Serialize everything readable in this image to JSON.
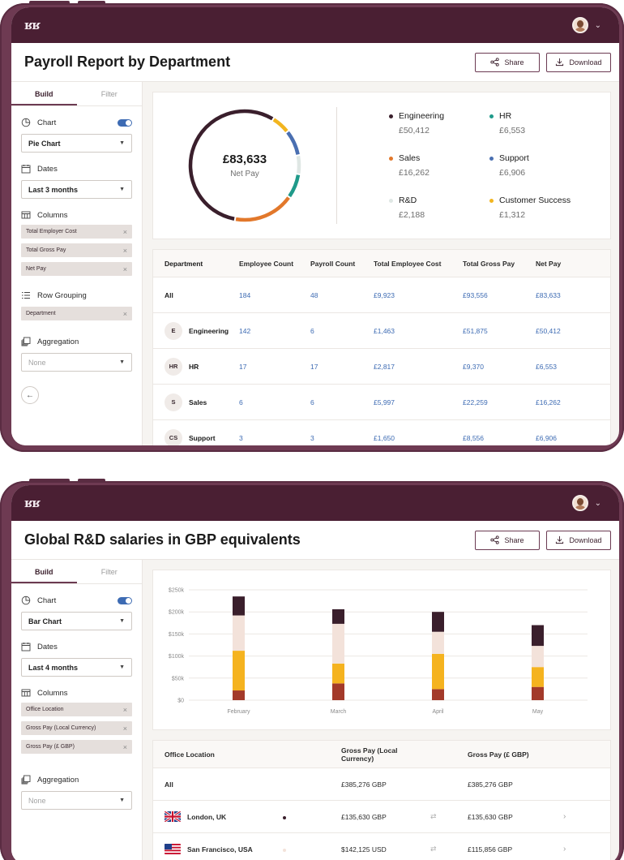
{
  "app": {
    "logo": "ʁʁ"
  },
  "share_label": "Share",
  "download_label": "Download",
  "tabs": {
    "build": "Build",
    "filter": "Filter"
  },
  "report1": {
    "title": "Payroll Report by Department",
    "sidebar": {
      "chart_label": "Chart",
      "chart_value": "Pie Chart",
      "dates_label": "Dates",
      "dates_value": "Last 3 months",
      "columns_label": "Columns",
      "columns": [
        "Total Employer Cost",
        "Total Gross Pay",
        "Net Pay"
      ],
      "grouping_label": "Row Grouping",
      "grouping": [
        "Department"
      ],
      "aggregation_label": "Aggregation",
      "aggregation_value": "None"
    },
    "summary": {
      "value": "£83,633",
      "label": "Net Pay"
    },
    "chart_data": {
      "type": "pie",
      "title": "",
      "slices": [
        {
          "name": "Engineering",
          "value": 50412,
          "display": "£50,412",
          "color": "#3a1f2c"
        },
        {
          "name": "HR",
          "value": 6553,
          "display": "£6,553",
          "color": "#1f9a8a"
        },
        {
          "name": "Sales",
          "value": 16262,
          "display": "£16,262",
          "color": "#e2782b"
        },
        {
          "name": "Support",
          "value": 6906,
          "display": "£6,906",
          "color": "#4a6fb1"
        },
        {
          "name": "R&D",
          "value": 2188,
          "display": "£2,188",
          "color": "#dfe7e4"
        },
        {
          "name": "Customer Success",
          "value": 1312,
          "display": "£1,312",
          "color": "#f2b51f"
        }
      ],
      "ring_order": [
        "Customer Success",
        "Support",
        "R&D",
        "HR",
        "Sales",
        "Engineering"
      ]
    },
    "table": {
      "headers": [
        "Department",
        "Employee Count",
        "Payroll Count",
        "Total Employee Cost",
        "Total Gross Pay",
        "Net Pay"
      ],
      "rows": [
        {
          "badge": "",
          "name": "All",
          "cells": [
            "184",
            "48",
            "£9,923",
            "£93,556",
            "£83,633"
          ]
        },
        {
          "badge": "E",
          "name": "Engineering",
          "cells": [
            "142",
            "6",
            "£1,463",
            "£51,875",
            "£50,412"
          ]
        },
        {
          "badge": "HR",
          "name": "HR",
          "cells": [
            "17",
            "17",
            "£2,817",
            "£9,370",
            "£6,553"
          ]
        },
        {
          "badge": "S",
          "name": "Sales",
          "cells": [
            "6",
            "6",
            "£5,997",
            "£22,259",
            "£16,262"
          ]
        },
        {
          "badge": "CS",
          "name": "Support",
          "cells": [
            "3",
            "3",
            "£1,650",
            "£8,556",
            "£6,906"
          ]
        }
      ]
    }
  },
  "report2": {
    "title": "Global R&D salaries in GBP equivalents",
    "sidebar": {
      "chart_label": "Chart",
      "chart_value": "Bar Chart",
      "dates_label": "Dates",
      "dates_value": "Last 4 months",
      "columns_label": "Columns",
      "columns": [
        "Office Location",
        "Gross Pay (Local Currency)",
        "Gross Pay (£ GBP)"
      ],
      "aggregation_label": "Aggregation",
      "aggregation_value": "None"
    },
    "chart_data": {
      "type": "bar",
      "stacked": true,
      "title": "",
      "xlabel": "",
      "ylabel": "",
      "categories": [
        "February",
        "March",
        "April",
        "May"
      ],
      "ylim": [
        0,
        250000
      ],
      "yticks": [
        0,
        50000,
        100000,
        150000,
        200000,
        250000
      ],
      "ytick_labels": [
        "$0",
        "$50k",
        "$100k",
        "$150k",
        "$200k",
        "$250k"
      ],
      "grid": true,
      "series": [
        {
          "color": "#a33a2a",
          "values": [
            22000,
            38000,
            25000,
            30000
          ]
        },
        {
          "color": "#f5b31f",
          "values": [
            90000,
            45000,
            80000,
            45000
          ]
        },
        {
          "color": "#f3e2da",
          "values": [
            80000,
            90000,
            50000,
            48000
          ]
        },
        {
          "color": "#3a1f2c",
          "values": [
            43000,
            33000,
            45000,
            47000
          ]
        }
      ]
    },
    "table": {
      "headers": [
        "Office Location",
        "Gross Pay (Local Currency)",
        "Gross Pay (£ GBP)"
      ],
      "rows": [
        {
          "flag": "",
          "name": "All",
          "dot": "",
          "local": "£385,276 GBP",
          "arrow": "",
          "gbp": "£385,276 GBP",
          "chev": ""
        },
        {
          "flag": "uk",
          "name": "London, UK",
          "dot": "#3a1f2c",
          "local": "£135,630 GBP",
          "arrow": "⇄",
          "gbp": "£135,630 GBP",
          "chev": "›"
        },
        {
          "flag": "us",
          "name": "San Francisco, USA",
          "dot": "#f3e2da",
          "local": "$142,125 USD",
          "arrow": "⇄",
          "gbp": "£115,856 GBP",
          "chev": "›"
        }
      ]
    }
  }
}
